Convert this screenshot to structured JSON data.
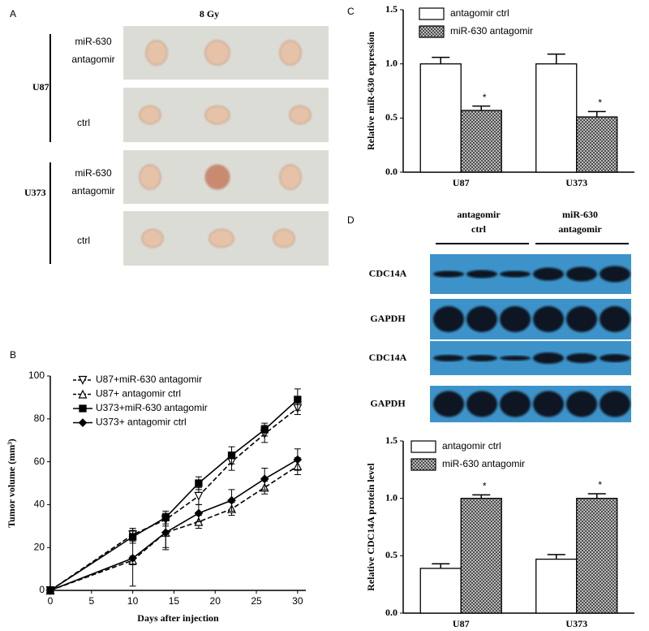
{
  "panel_a": {
    "letter": "A",
    "title": "8 Gy",
    "groups": [
      {
        "name": "U87",
        "rows": [
          [
            "miR-630",
            "antagomir"
          ],
          [
            "ctrl"
          ]
        ]
      },
      {
        "name": "U373",
        "rows": [
          [
            "miR-630",
            "antagomir"
          ],
          [
            "ctrl"
          ]
        ]
      }
    ]
  },
  "blot": {
    "letter": "D",
    "headers": [
      [
        "antagomir",
        "ctrl"
      ],
      [
        "miR-630",
        "antagomir"
      ]
    ],
    "rows": [
      "CDC14A",
      "GAPDH",
      "CDC14A",
      "GAPDH"
    ]
  },
  "chart_data": [
    {
      "type": "bar",
      "letter": "C",
      "y_label": "Relative miR-630 expression",
      "categories": [
        "U87",
        "U373"
      ],
      "series": [
        {
          "name": "antagomir ctrl",
          "color": "#ffffff",
          "hatch": false,
          "values": [
            1.0,
            1.0
          ],
          "errors": [
            0.06,
            0.09
          ]
        },
        {
          "name": "miR-630 antagomir",
          "color": "#ffffff",
          "hatch": true,
          "values": [
            0.57,
            0.51
          ],
          "errors": [
            0.04,
            0.05
          ],
          "significance": [
            "*",
            "*"
          ]
        }
      ],
      "ylim": [
        0,
        1.5
      ],
      "yticks": [
        {
          "value": 0,
          "label": "0.0"
        },
        {
          "value": 0.5,
          "label": "0.5"
        },
        {
          "value": 1.0,
          "label": "1.0"
        },
        {
          "value": 1.5,
          "label": "1.5"
        }
      ],
      "grid": false
    },
    {
      "type": "line",
      "letter": "B",
      "x_label": "Days after injection",
      "y_label": "Tumor volume (mm³)",
      "x": [
        0,
        10,
        14,
        18,
        22,
        26,
        30
      ],
      "series": [
        {
          "name": "U87+miR-630 antagomir",
          "color": "#000000",
          "dash": true,
          "marker": "triangle-down",
          "marker_fill": "#ffffff",
          "values": [
            0,
            26,
            33,
            44,
            60,
            73,
            85
          ],
          "errors": [
            0,
            3,
            3,
            4,
            4,
            4,
            3
          ]
        },
        {
          "name": "U87+ antagomir ctrl",
          "color": "#000000",
          "dash": true,
          "marker": "triangle-up",
          "marker_fill": "#ffffff",
          "values": [
            0,
            14,
            27,
            32,
            38,
            48,
            58
          ],
          "errors": [
            0,
            2,
            8,
            3,
            3,
            3,
            4
          ]
        },
        {
          "name": "U373+miR-630 antagomir",
          "color": "#000000",
          "dash": false,
          "marker": "square",
          "marker_fill": "#000000",
          "values": [
            0,
            25,
            34,
            50,
            63,
            75,
            89
          ],
          "errors": [
            0,
            3,
            3,
            3,
            4,
            3,
            5
          ]
        },
        {
          "name": "U373+ antagomir ctrl",
          "color": "#000000",
          "dash": false,
          "marker": "diamond",
          "marker_fill": "#000000",
          "values": [
            0,
            15,
            27,
            36,
            42,
            52,
            61
          ],
          "errors": [
            0,
            13,
            7,
            4,
            5,
            5,
            5
          ]
        }
      ],
      "xlim": [
        0,
        31
      ],
      "xticks": [
        0,
        5,
        10,
        15,
        20,
        25,
        30
      ],
      "ylim": [
        0,
        100
      ],
      "yticks": [
        0,
        20,
        40,
        60,
        80,
        100
      ],
      "grid": false
    },
    {
      "type": "bar",
      "letter": "",
      "y_label": "Relative CDC14A protein level",
      "categories": [
        "U87",
        "U373"
      ],
      "series": [
        {
          "name": "antagomir ctrl",
          "color": "#ffffff",
          "hatch": false,
          "values": [
            0.39,
            0.47
          ],
          "errors": [
            0.04,
            0.04
          ]
        },
        {
          "name": "miR-630 antagomir",
          "color": "#ffffff",
          "hatch": true,
          "values": [
            1.0,
            1.0
          ],
          "errors": [
            0.03,
            0.04
          ],
          "significance": [
            "*",
            "*"
          ]
        }
      ],
      "ylim": [
        0,
        1.5
      ],
      "yticks": [
        {
          "value": 0,
          "label": "0.0"
        },
        {
          "value": 0.5,
          "label": "0.5"
        },
        {
          "value": 1.0,
          "label": "1.0"
        },
        {
          "value": 1.5,
          "label": "1.5"
        }
      ],
      "grid": false
    }
  ]
}
